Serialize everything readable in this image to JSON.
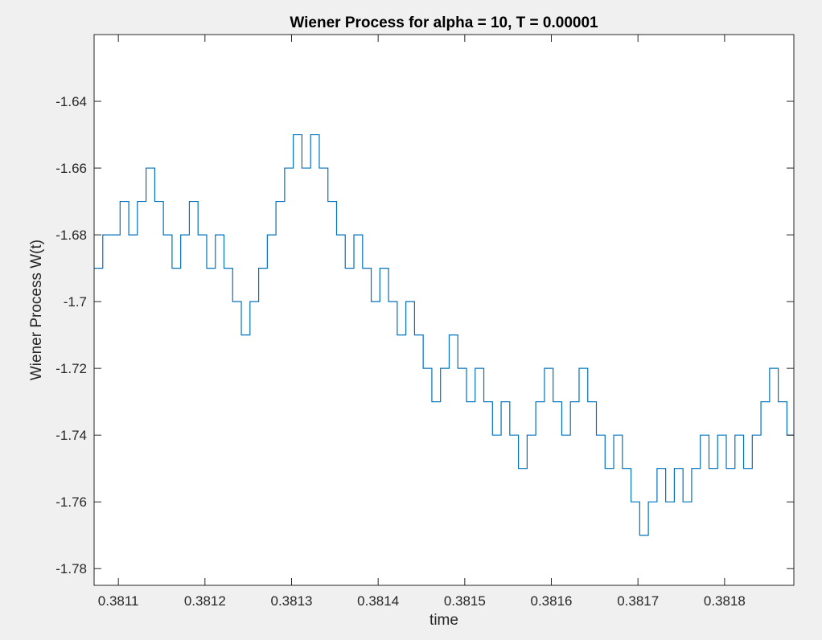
{
  "chart_data": {
    "type": "line",
    "title": "Wiener Process for alpha = 10, T = 0.00001",
    "xlabel": "time",
    "ylabel": "Wiener Process W(t)",
    "xlim": [
      0.381072,
      0.38188
    ],
    "ylim": [
      -1.785,
      -1.62
    ],
    "xticks": [
      0.3811,
      0.3812,
      0.3813,
      0.3814,
      0.3815,
      0.3816,
      0.3817,
      0.3818
    ],
    "xtick_labels": [
      "0.3811",
      "0.3812",
      "0.3813",
      "0.3814",
      "0.3815",
      "0.3816",
      "0.3817",
      "0.3818"
    ],
    "yticks": [
      -1.78,
      -1.76,
      -1.74,
      -1.72,
      -1.7,
      -1.68,
      -1.66,
      -1.64
    ],
    "ytick_labels": [
      "-1.78",
      "-1.76",
      "-1.74",
      "-1.72",
      "-1.7",
      "-1.68",
      "-1.66",
      "-1.64"
    ],
    "grid": false,
    "line_color": "#0072bd",
    "series": [
      {
        "x_start": 0.381072,
        "x_step": 1e-05,
        "values": [
          -1.69,
          -1.68,
          -1.68,
          -1.67,
          -1.68,
          -1.67,
          -1.66,
          -1.67,
          -1.68,
          -1.69,
          -1.68,
          -1.67,
          -1.68,
          -1.69,
          -1.68,
          -1.69,
          -1.7,
          -1.71,
          -1.7,
          -1.69,
          -1.68,
          -1.67,
          -1.66,
          -1.65,
          -1.66,
          -1.65,
          -1.66,
          -1.67,
          -1.68,
          -1.69,
          -1.68,
          -1.69,
          -1.7,
          -1.69,
          -1.7,
          -1.71,
          -1.7,
          -1.71,
          -1.72,
          -1.73,
          -1.72,
          -1.71,
          -1.72,
          -1.73,
          -1.72,
          -1.73,
          -1.74,
          -1.73,
          -1.74,
          -1.75,
          -1.74,
          -1.73,
          -1.72,
          -1.73,
          -1.74,
          -1.73,
          -1.72,
          -1.73,
          -1.74,
          -1.75,
          -1.74,
          -1.75,
          -1.76,
          -1.77,
          -1.76,
          -1.75,
          -1.76,
          -1.75,
          -1.76,
          -1.75,
          -1.74,
          -1.75,
          -1.74,
          -1.75,
          -1.74,
          -1.75,
          -1.74,
          -1.73,
          -1.72,
          -1.73,
          -1.74
        ]
      }
    ]
  }
}
